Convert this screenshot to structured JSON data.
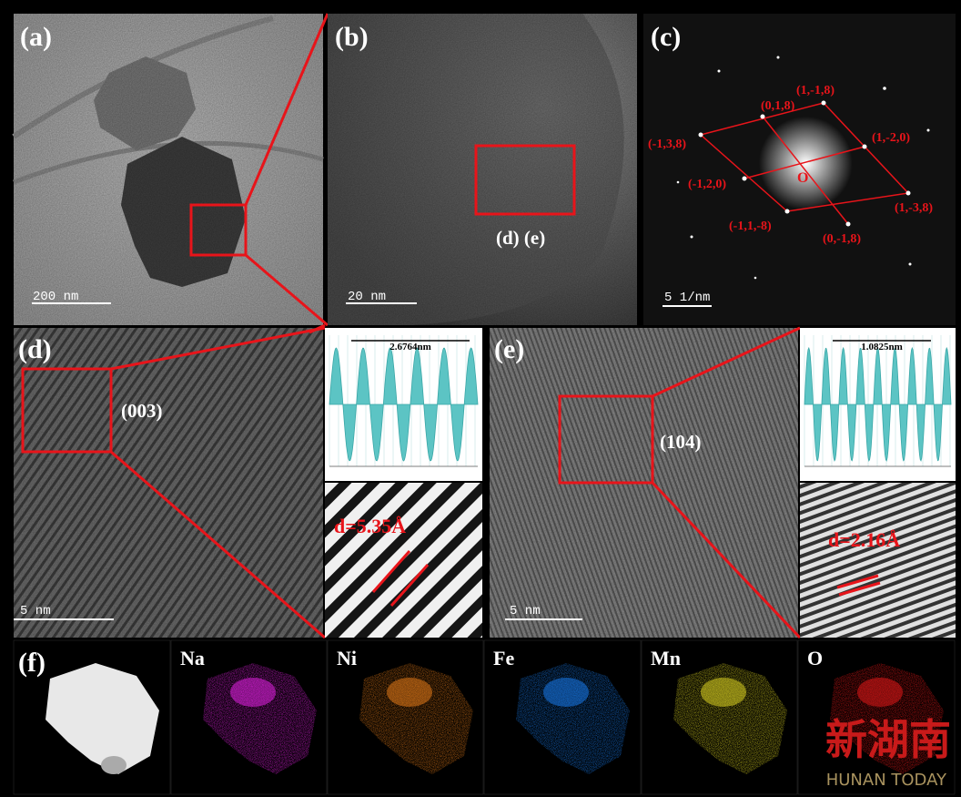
{
  "panel_a": {
    "label": "(a)",
    "scale_bar": "200 nm"
  },
  "panel_b": {
    "label": "(b)",
    "scale_bar": "20 nm",
    "region_label": "(d) (e)"
  },
  "panel_c": {
    "label": "(c)",
    "scale_bar": "5 1/nm",
    "origin": "O",
    "spots": [
      "(0,1,8)",
      "(1,-1,8)",
      "(-1,3,8)",
      "(1,-2,0)",
      "(-1,2,0)",
      "(1,-3,8)",
      "(-1,1,-8)",
      "(0,-1,8)"
    ]
  },
  "panel_d": {
    "label": "(d)",
    "scale_bar": "5 nm",
    "plane": "(003)",
    "profile_distance": "2.6764nm",
    "d_spacing": "d=5.35Å"
  },
  "panel_e": {
    "label": "(e)",
    "scale_bar": "5 nm",
    "plane": "(104)",
    "profile_distance": "1.0825nm",
    "d_spacing": "d=2.16Å"
  },
  "panel_f": {
    "label": "(f)",
    "elements": [
      "Na",
      "Ni",
      "Fe",
      "Mn",
      "O"
    ]
  },
  "watermark": {
    "name": "新湖南",
    "subtitle": "HUNAN TODAY"
  }
}
